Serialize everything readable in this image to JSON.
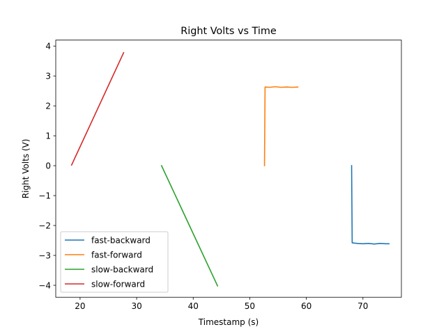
{
  "chart_data": {
    "type": "line",
    "title": "Right Volts vs Time",
    "xlabel": "Timestamp (s)",
    "ylabel": "Right Volts (V)",
    "xlim": [
      15.7,
      76.8
    ],
    "ylim": [
      -4.4,
      4.2
    ],
    "xticks": [
      20,
      30,
      40,
      50,
      60,
      70
    ],
    "yticks": [
      -4,
      -3,
      -2,
      -1,
      0,
      1,
      2,
      3,
      4
    ],
    "xtick_labels": [
      "20",
      "30",
      "40",
      "50",
      "60",
      "70"
    ],
    "ytick_labels": [
      "−4",
      "−3",
      "−2",
      "−1",
      "0",
      "1",
      "2",
      "3",
      "4"
    ],
    "grid": false,
    "legend_position": "lower-left",
    "series": [
      {
        "name": "fast-backward",
        "color": "#1f77b4",
        "x": [
          68.0,
          68.05,
          68.1,
          69.0,
          70.0,
          71.0,
          72.0,
          73.0,
          74.0,
          74.6
        ],
        "y": [
          0.0,
          -1.3,
          -2.58,
          -2.6,
          -2.61,
          -2.6,
          -2.62,
          -2.6,
          -2.61,
          -2.61
        ]
      },
      {
        "name": "fast-forward",
        "color": "#ff7f0e",
        "x": [
          52.6,
          52.65,
          52.7,
          53.5,
          54.5,
          55.5,
          56.5,
          57.5,
          58.5
        ],
        "y": [
          0.0,
          1.3,
          2.63,
          2.62,
          2.64,
          2.62,
          2.63,
          2.62,
          2.63
        ]
      },
      {
        "name": "slow-backward",
        "color": "#2ca02c",
        "x": [
          34.4,
          44.3
        ],
        "y": [
          0.0,
          -4.02
        ]
      },
      {
        "name": "slow-forward",
        "color": "#d62728",
        "x": [
          18.5,
          27.7
        ],
        "y": [
          0.02,
          3.78
        ]
      }
    ]
  }
}
